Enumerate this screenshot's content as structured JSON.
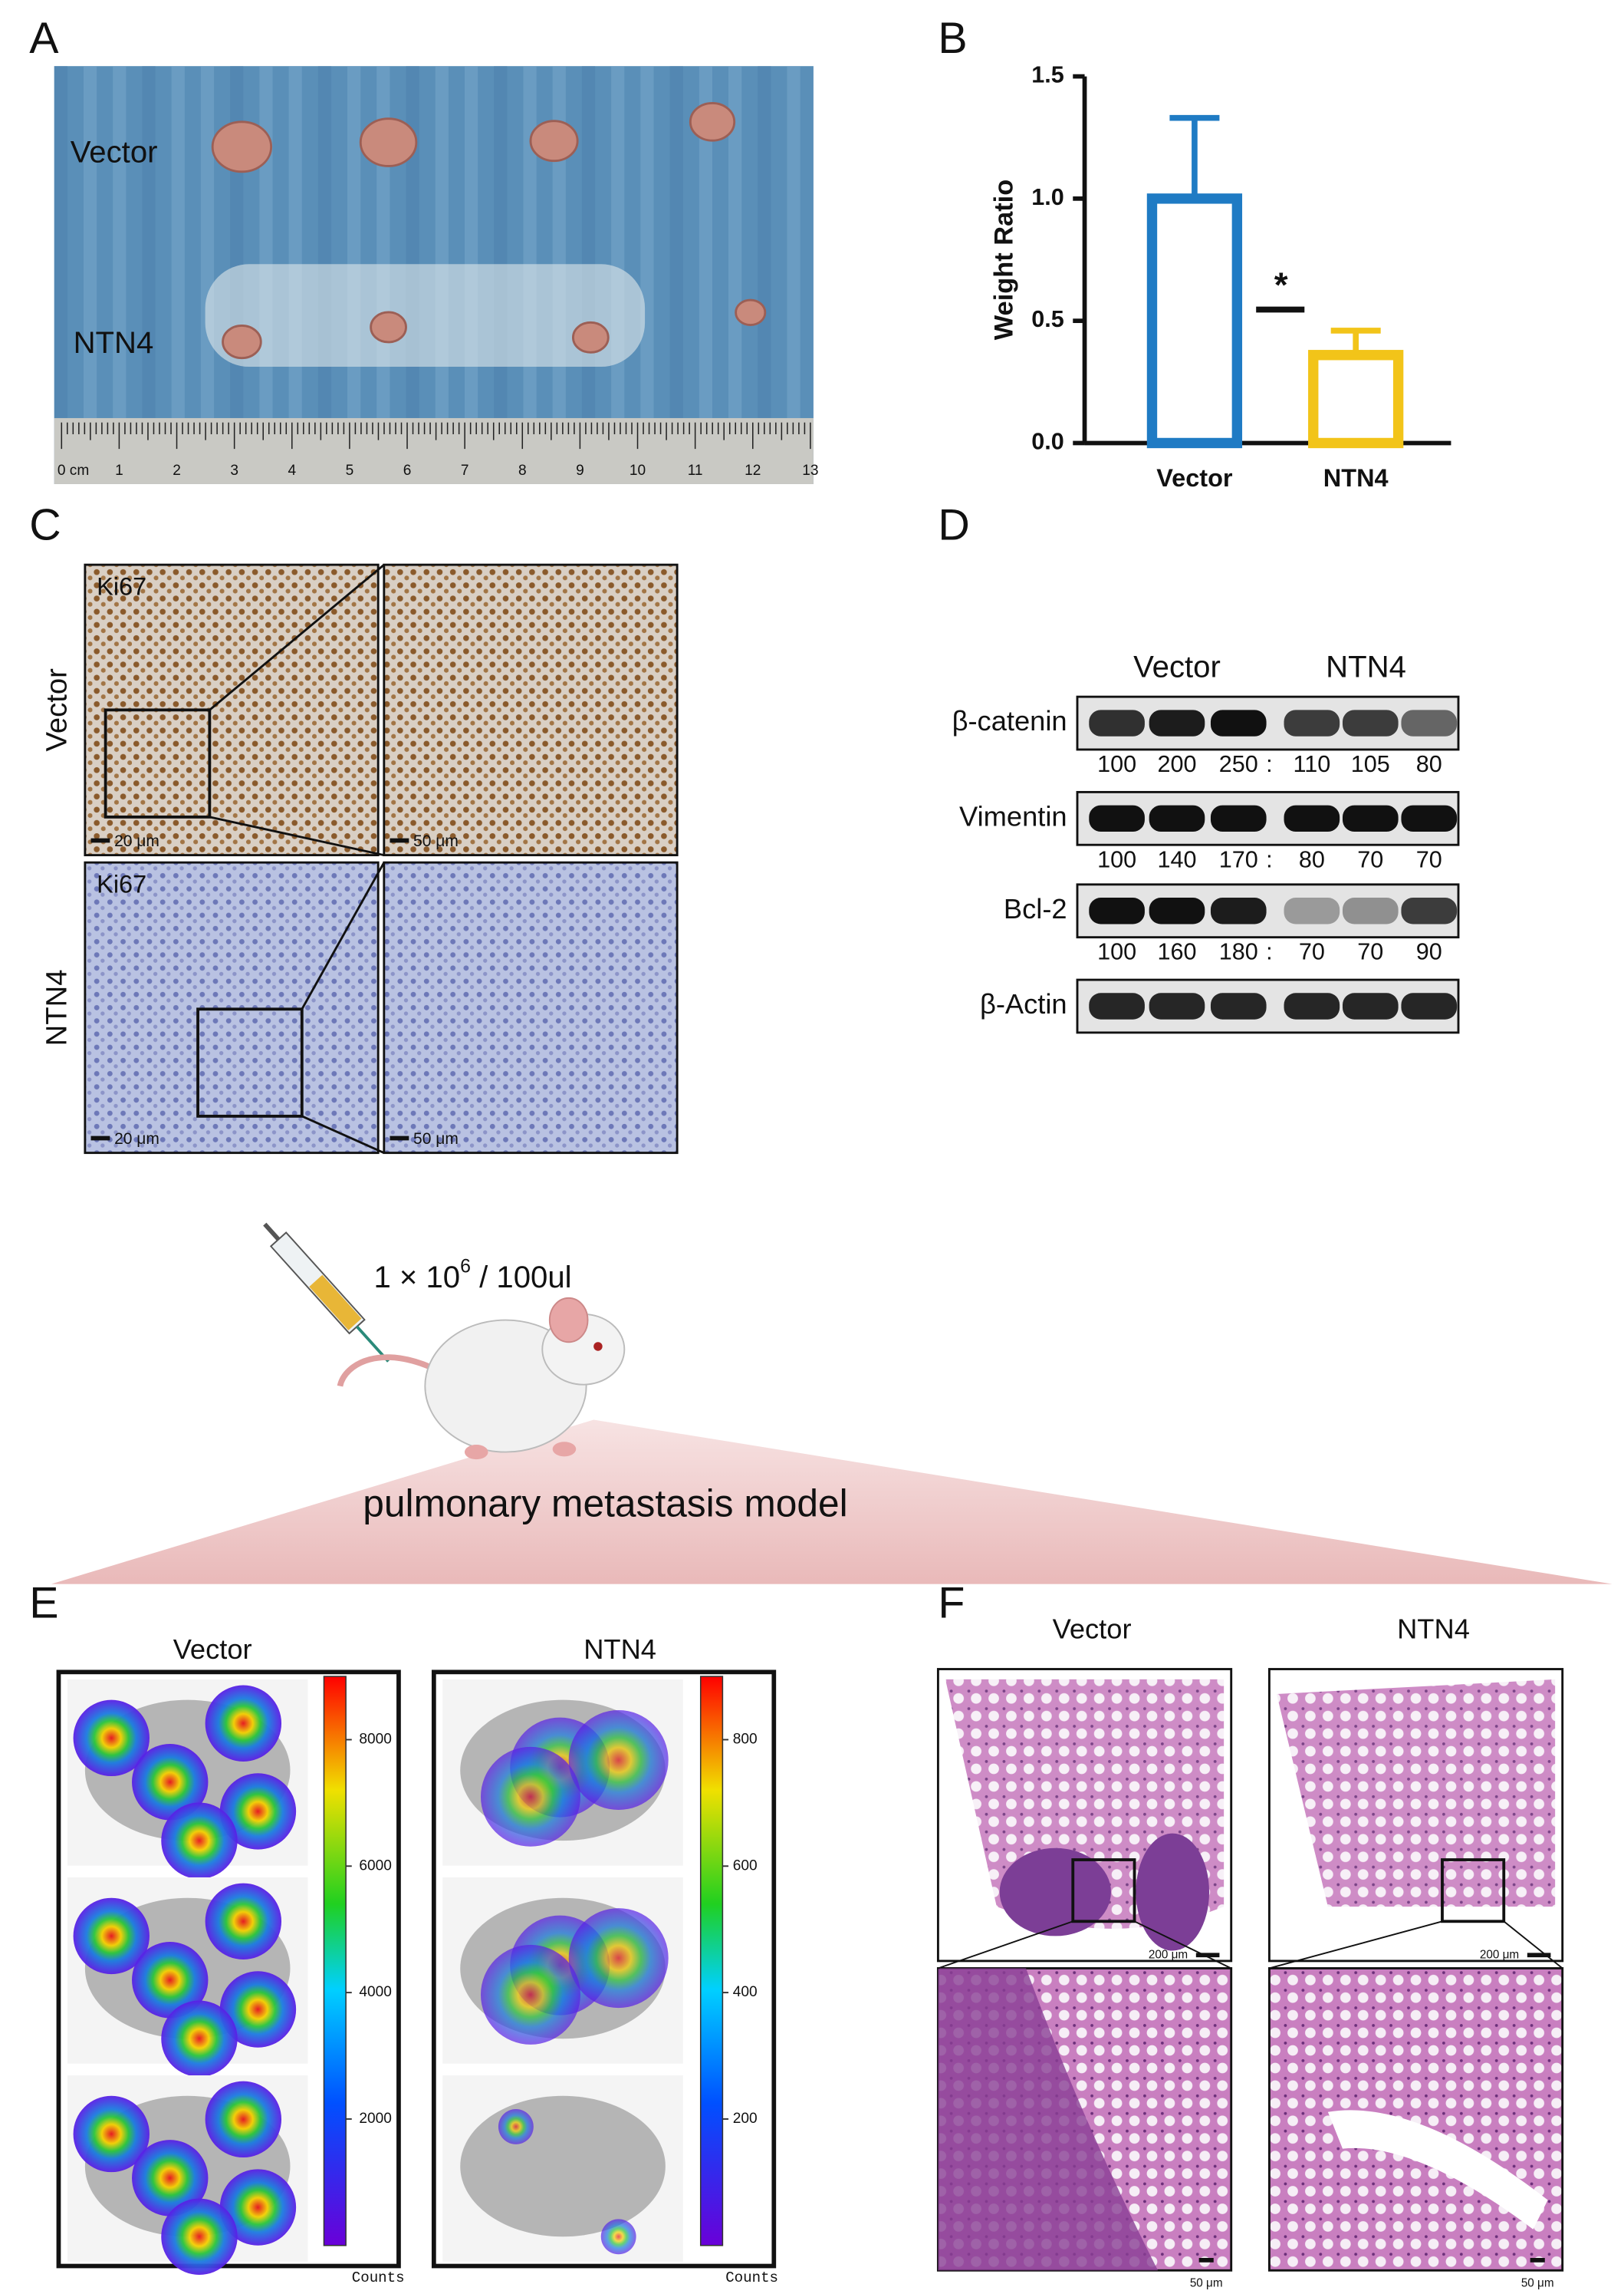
{
  "panel_labels": [
    "A",
    "B",
    "C",
    "D",
    "E",
    "F"
  ],
  "panel_a": {
    "rows": [
      "Vector",
      "NTN4"
    ],
    "ruler": [
      "0 cm",
      "1",
      "2",
      "3",
      "4",
      "5",
      "6",
      "7",
      "8",
      "9",
      "10",
      "11",
      "12",
      "13"
    ]
  },
  "chart_data": {
    "type": "bar",
    "y_label": "Weight Ratio",
    "categories": [
      "Vector",
      "NTN4"
    ],
    "values": [
      1.0,
      0.36
    ],
    "errors": [
      0.33,
      0.1
    ],
    "series_colors": [
      "#1f7bc4",
      "#f2c419"
    ],
    "ylim": [
      0,
      1.5
    ],
    "yticks": [
      {
        "value": 0,
        "label": "0.0"
      },
      {
        "value": 0.5,
        "label": "0.5"
      },
      {
        "value": 1,
        "label": "1.0"
      },
      {
        "value": 1.5,
        "label": "1.5"
      }
    ],
    "annotation": "*"
  },
  "panel_c": {
    "rows": [
      "Vector",
      "NTN4"
    ],
    "stain": [
      "Ki67",
      "Ki67"
    ],
    "scale_bars": [
      "20 μm",
      "50 μm",
      "20 μm",
      "50 μm"
    ]
  },
  "panel_d": {
    "groups": [
      "Vector",
      "NTN4"
    ],
    "separator": ":",
    "blots": [
      {
        "name": "β-catenin",
        "quant": [
          100,
          200,
          250,
          110,
          105,
          80
        ]
      },
      {
        "name": "Vimentin",
        "quant": [
          100,
          140,
          170,
          80,
          70,
          70
        ]
      },
      {
        "name": "Bcl-2",
        "quant": [
          100,
          160,
          180,
          70,
          70,
          90
        ]
      },
      {
        "name": "β-Actin"
      }
    ]
  },
  "injection": {
    "dose": "1 × 10",
    "exponent": "6",
    "volume": " / 100ul",
    "model": "pulmonary metastasis model"
  },
  "panel_e": {
    "groups": [
      "Vector",
      "NTN4"
    ],
    "colorbars": [
      {
        "ticks": [
          2000,
          4000,
          6000,
          8000
        ],
        "lim": [
          0,
          9000
        ],
        "label": "Counts"
      },
      {
        "ticks": [
          200,
          400,
          600,
          800
        ],
        "lim": [
          0,
          900
        ],
        "label": "Counts"
      }
    ]
  },
  "panel_f": {
    "groups": [
      "Vector",
      "NTN4"
    ],
    "scale_bars": [
      "200 μm",
      "200 μm",
      "50 μm",
      "50 μm"
    ]
  }
}
